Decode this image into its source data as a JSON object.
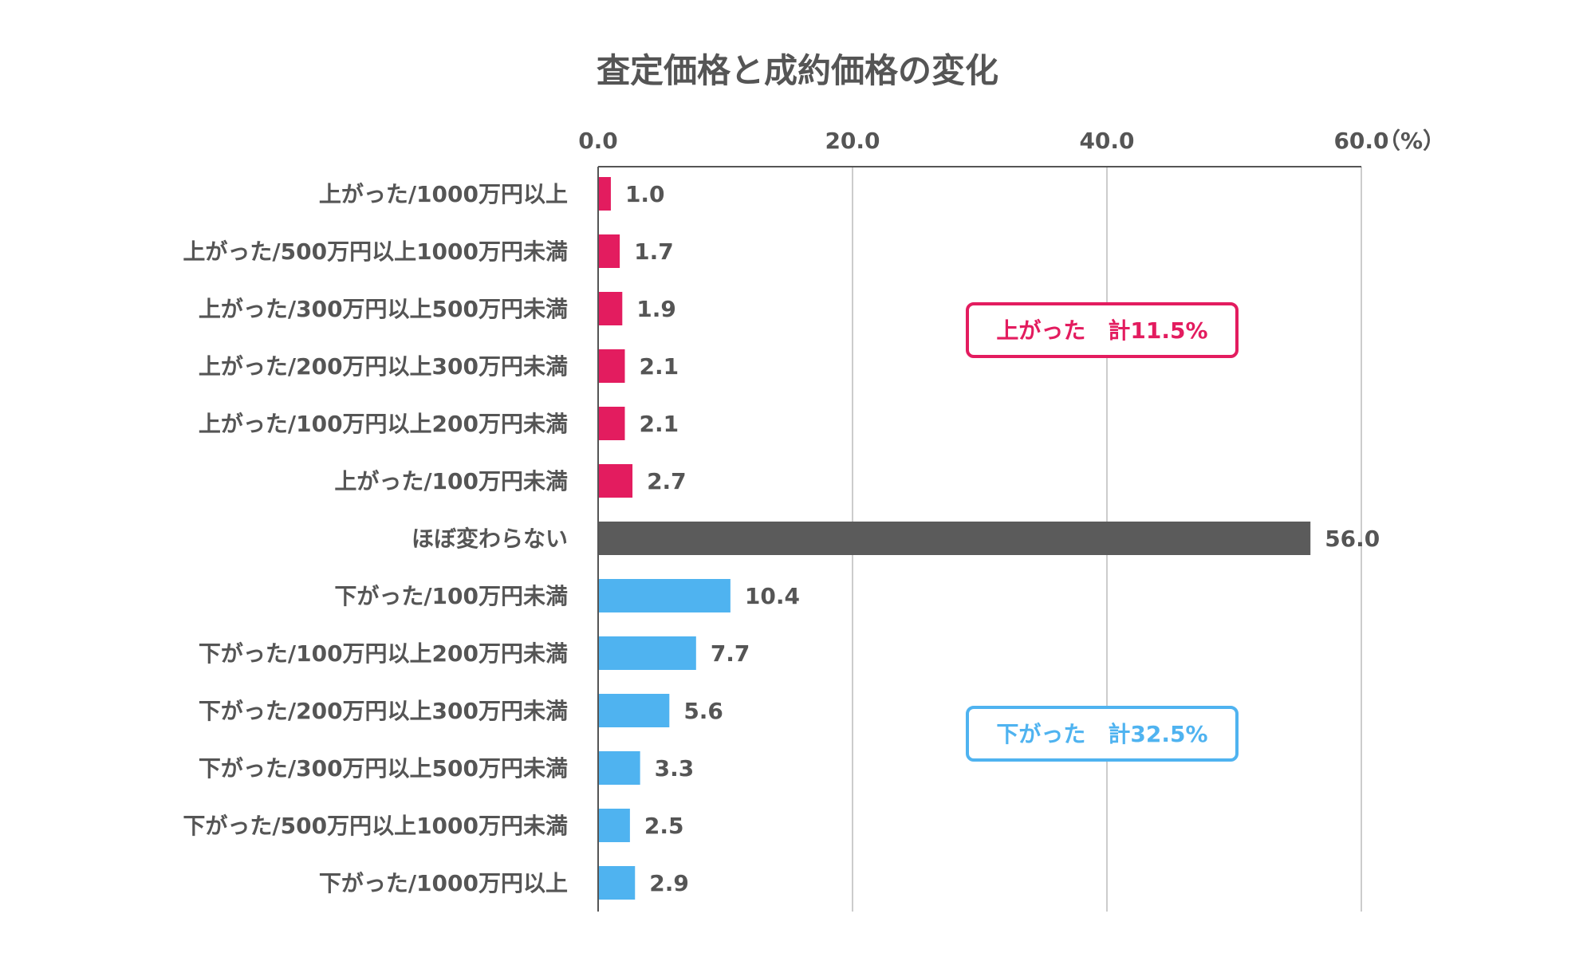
{
  "chart_data": {
    "type": "bar",
    "orientation": "horizontal",
    "title": "査定価格と成約価格の変化",
    "xlabel": "",
    "ylabel": "",
    "unit_label": "（%）",
    "xlim": [
      0,
      60
    ],
    "x_ticks": [
      0,
      20,
      40,
      60
    ],
    "x_tick_labels": [
      "0.0",
      "20.0",
      "40.0",
      "60.0"
    ],
    "grid": "vertical",
    "legend": "none",
    "categories": [
      "上がった/1000万円以上",
      "上がった/500万円以上1000万円未満",
      "上がった/300万円以上500万円未満",
      "上がった/200万円以上300万円未満",
      "上がった/100万円以上200万円未満",
      "上がった/100万円未満",
      "ほぼ変わらない",
      "下がった/100万円未満",
      "下がった/100万円以上200万円未満",
      "下がった/200万円以上300万円未満",
      "下がった/300万円以上500万円未満",
      "下がった/500万円以上1000万円未満",
      "下がった/1000万円以上"
    ],
    "values": [
      1.0,
      1.7,
      1.9,
      2.1,
      2.1,
      2.7,
      56.0,
      10.4,
      7.7,
      5.6,
      3.3,
      2.5,
      2.9
    ],
    "value_labels": [
      "1.0",
      "1.7",
      "1.9",
      "2.1",
      "2.1",
      "2.7",
      "56.0",
      "10.4",
      "7.7",
      "5.6",
      "3.3",
      "2.5",
      "2.9"
    ],
    "groups": [
      "up",
      "up",
      "up",
      "up",
      "up",
      "up",
      "same",
      "down",
      "down",
      "down",
      "down",
      "down",
      "down"
    ],
    "colors": {
      "up": "#e31c5f",
      "same": "#5b5b5b",
      "down": "#4fb3f0",
      "text": "#555555",
      "grid": "#cccccc",
      "axis": "#555555"
    },
    "annotations": [
      {
        "text": "上がった　計11.5%",
        "group": "up"
      },
      {
        "text": "下がった　計32.5%",
        "group": "down"
      }
    ]
  }
}
